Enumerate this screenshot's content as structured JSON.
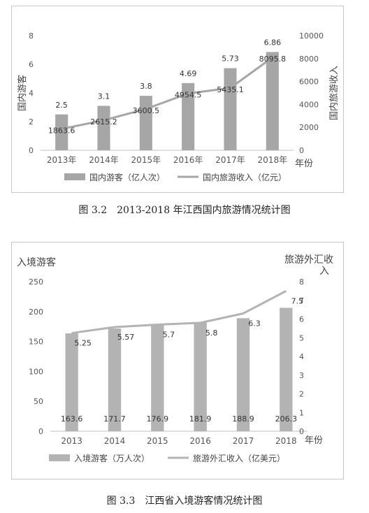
{
  "chart_data": [
    {
      "type": "bar",
      "categories": [
        "2013年",
        "2014年",
        "2015年",
        "2016年",
        "2017年",
        "2018年"
      ],
      "xlabel": "年份",
      "ylabel": "国内游客",
      "y2label": "国内旅游收入",
      "ylim": [
        0,
        8
      ],
      "yticks": [
        "0",
        "2",
        "4",
        "6",
        "8"
      ],
      "y2lim": [
        0,
        10000
      ],
      "y2ticks": [
        "0",
        "2000",
        "4000",
        "6000",
        "8000",
        "10000"
      ],
      "series": [
        {
          "name": "国内游客（亿人次）",
          "type": "bar",
          "axis": "left",
          "color": "#a6a6a6",
          "values": [
            2.5,
            3.1,
            3.8,
            4.69,
            5.73,
            6.86
          ],
          "labels": [
            "2.5",
            "3.1",
            "3.8",
            "4.69",
            "5.73",
            "6.86"
          ]
        },
        {
          "name": "国内旅游收入（亿元）",
          "type": "line",
          "axis": "right",
          "color": "#a6a6a6",
          "values": [
            1863.6,
            2615.2,
            3600.5,
            4954.5,
            5435.1,
            8095.8
          ],
          "labels": [
            "1863.6",
            "2615.2",
            "3600.5",
            "4954.5",
            "5435.1",
            "8095.8"
          ]
        }
      ],
      "grid": false,
      "legend": "bottom",
      "caption": "图 3.2　2013-2018 年江西国内旅游情况统计图"
    },
    {
      "type": "bar",
      "categories": [
        "2013",
        "2014",
        "2015",
        "2016",
        "2017",
        "2018"
      ],
      "xlabel": "年份",
      "ylabel": "入境游客",
      "y2label": "旅游外汇收入",
      "ylim": [
        0,
        250
      ],
      "yticks": [
        "0",
        "50",
        "100",
        "150",
        "200",
        "250"
      ],
      "y2lim": [
        0,
        8
      ],
      "y2ticks": [
        "0",
        "1",
        "2",
        "3",
        "4",
        "5",
        "6",
        "7",
        "8"
      ],
      "series": [
        {
          "name": "入境游客（万人次）",
          "type": "bar",
          "axis": "left",
          "color": "#b3b3b3",
          "values": [
            163.6,
            171.7,
            176.9,
            181.9,
            188.9,
            206.3
          ],
          "labels": [
            "163.6",
            "171.7",
            "176.9",
            "181.9",
            "188.9",
            "206.3"
          ]
        },
        {
          "name": "旅游外汇收入（亿美元）",
          "type": "line",
          "axis": "right",
          "color": "#b3b3b3",
          "values": [
            5.25,
            5.57,
            5.7,
            5.8,
            6.3,
            7.5
          ],
          "labels": [
            "5.25",
            "5.57",
            "5.7",
            "5.8",
            "6.3",
            "7.5"
          ]
        }
      ],
      "grid": false,
      "legend": "bottom",
      "caption": "图 3.3　江西省入境游客情况统计图"
    }
  ]
}
